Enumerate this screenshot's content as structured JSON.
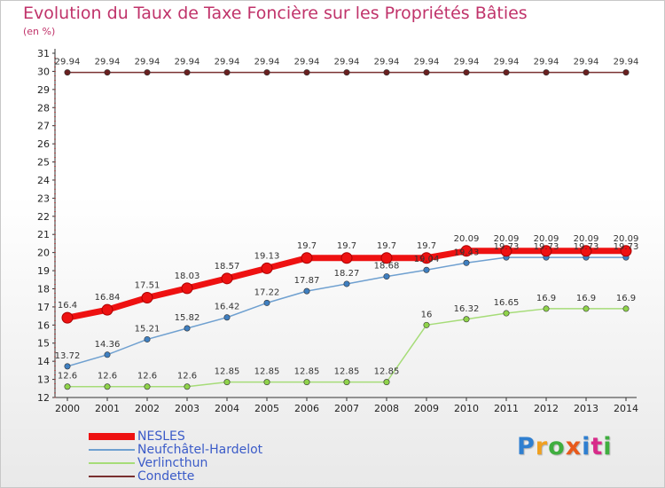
{
  "header": {
    "title": "Evolution du Taux de Taxe Foncière sur les Propriétés Bâties",
    "subtitle": "(en %)"
  },
  "logo": {
    "text": "Proxiti",
    "colors": [
      "#2f7fd0",
      "#f0a020",
      "#3fae3f",
      "#e85a1c",
      "#2f7fd0",
      "#d82b8a",
      "#3fae3f"
    ]
  },
  "chart_data": {
    "type": "line",
    "title": "Evolution du Taux de Taxe Foncière sur les Propriétés Bâties",
    "ylabel": "(en %)",
    "xlabel": "",
    "x": [
      "2000",
      "2001",
      "2002",
      "2003",
      "2004",
      "2005",
      "2006",
      "2007",
      "2008",
      "2009",
      "2010",
      "2011",
      "2012",
      "2013",
      "2014"
    ],
    "ylim": [
      12,
      31
    ],
    "yticks": [
      12,
      13,
      14,
      15,
      16,
      17,
      18,
      19,
      20,
      21,
      22,
      23,
      24,
      25,
      26,
      27,
      28,
      29,
      30,
      31
    ],
    "grid": false,
    "legend": "bottom-left",
    "series": [
      {
        "name": "NESLES",
        "color": "#ee1111",
        "marker": "#ee1111",
        "values": [
          16.4,
          16.84,
          17.51,
          18.03,
          18.57,
          19.13,
          19.7,
          19.7,
          19.7,
          19.7,
          20.09,
          20.09,
          20.09,
          20.09,
          20.09
        ],
        "labels": [
          "16.4",
          "16.84",
          "17.51",
          "18.03",
          "18.57",
          "19.13",
          "19.7",
          "19.7",
          "19.7",
          "19.7",
          "20.09",
          "20.09",
          "20.09",
          "20.09",
          "20.09"
        ]
      },
      {
        "name": "Neufchâtel-Hardelot",
        "color": "#6fa0d0",
        "marker": "#3f7fc0",
        "values": [
          13.72,
          14.36,
          15.21,
          15.82,
          16.42,
          17.22,
          17.87,
          18.27,
          18.68,
          19.04,
          19.43,
          19.73,
          19.73,
          19.73,
          19.73
        ],
        "labels": [
          "13.72",
          "14.36",
          "15.21",
          "15.82",
          "16.42",
          "17.22",
          "17.87",
          "18.27",
          "18.68",
          "19.04",
          "19.43",
          "19.73",
          "19.73",
          "19.73",
          "19.73"
        ]
      },
      {
        "name": "Verlincthun",
        "color": "#a6dc78",
        "marker": "#8fd34a",
        "values": [
          12.6,
          12.6,
          12.6,
          12.6,
          12.85,
          12.85,
          12.85,
          12.85,
          12.85,
          16,
          16.32,
          16.65,
          16.9,
          16.9,
          16.9
        ],
        "labels": [
          "12.6",
          "12.6",
          "12.6",
          "12.6",
          "12.85",
          "12.85",
          "12.85",
          "12.85",
          "12.85",
          "16",
          "16.32",
          "16.65",
          "16.9",
          "16.9",
          "16.9"
        ]
      },
      {
        "name": "Condette",
        "color": "#7a3030",
        "marker": "#6a2020",
        "values": [
          29.94,
          29.94,
          29.94,
          29.94,
          29.94,
          29.94,
          29.94,
          29.94,
          29.94,
          29.94,
          29.94,
          29.94,
          29.94,
          29.94,
          29.94
        ],
        "labels": [
          "29.94",
          "29.94",
          "29.94",
          "29.94",
          "29.94",
          "29.94",
          "29.94",
          "29.94",
          "29.94",
          "29.94",
          "29.94",
          "29.94",
          "29.94",
          "29.94",
          "29.94"
        ]
      }
    ]
  }
}
